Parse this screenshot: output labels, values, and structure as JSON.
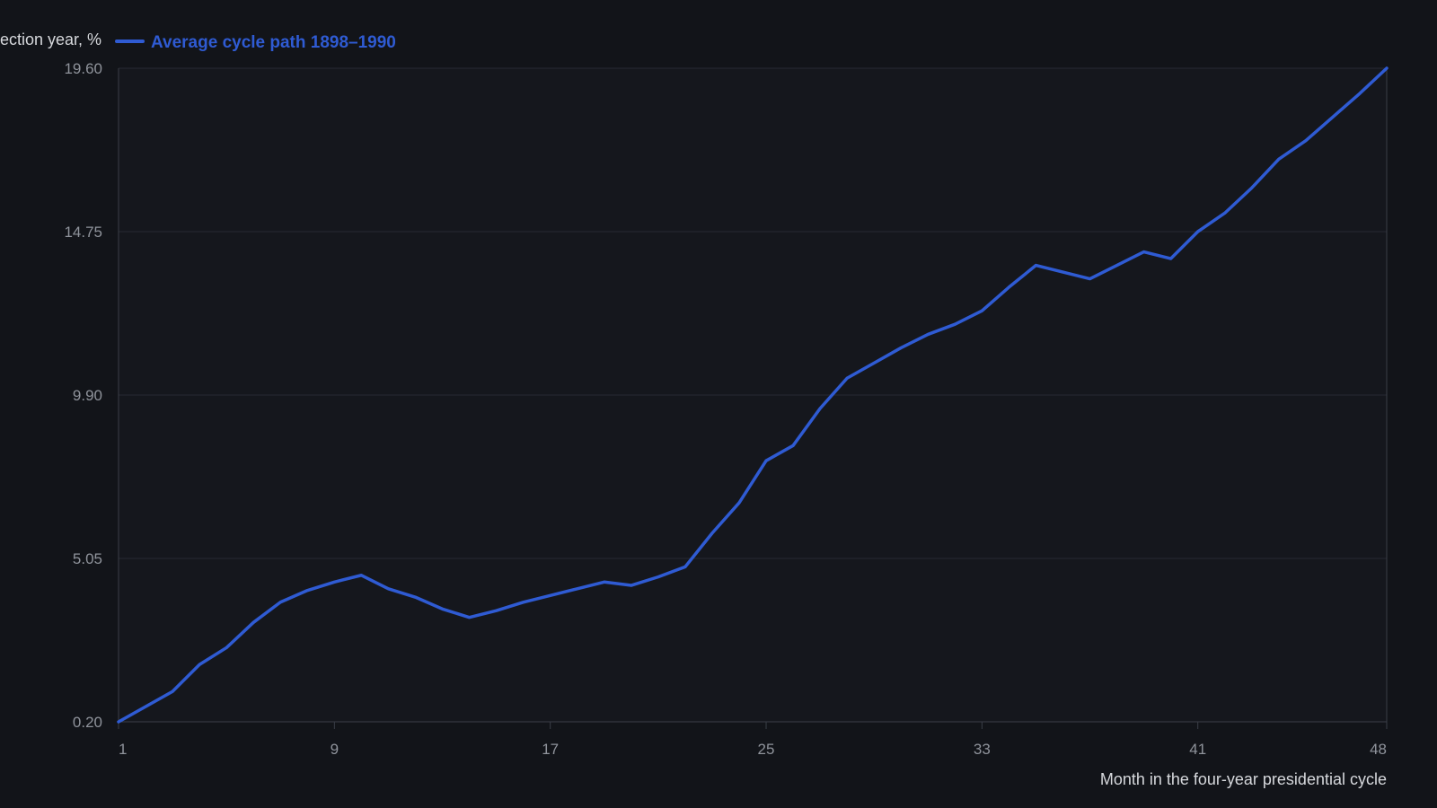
{
  "chart_data": {
    "type": "line",
    "ylabel": "ection year, %",
    "xlabel": "Month in the four-year presidential cycle",
    "xlim": [
      1,
      48
    ],
    "ylim": [
      0.2,
      19.6
    ],
    "x_ticks": [
      1,
      9,
      17,
      25,
      33,
      41,
      48
    ],
    "y_ticks": [
      0.2,
      5.05,
      9.9,
      14.75,
      19.6
    ],
    "y_tick_labels": [
      "0.20",
      "5.05",
      "9.90",
      "14.75",
      "19.60"
    ],
    "grid": "horizontal",
    "legend_position": "top-left",
    "colors": {
      "background": "#121419",
      "plot_background": "#15171d",
      "series": "#2f5bd3",
      "grid": "#262932",
      "axis": "#3a3e47",
      "tick_text": "#8f939b",
      "title_text": "#d6d8dc"
    },
    "series": [
      {
        "name": "Average cycle path 1898–1990",
        "x": [
          1,
          2,
          3,
          4,
          5,
          6,
          7,
          8,
          9,
          10,
          11,
          12,
          13,
          14,
          15,
          16,
          17,
          18,
          19,
          20,
          21,
          22,
          23,
          24,
          25,
          26,
          27,
          28,
          29,
          30,
          31,
          32,
          33,
          34,
          35,
          36,
          37,
          38,
          39,
          40,
          41,
          42,
          43,
          44,
          45,
          46,
          47,
          48
        ],
        "y": [
          0.2,
          0.65,
          1.1,
          1.9,
          2.4,
          3.15,
          3.75,
          4.1,
          4.35,
          4.55,
          4.15,
          3.9,
          3.55,
          3.3,
          3.5,
          3.75,
          3.95,
          4.15,
          4.35,
          4.25,
          4.5,
          4.8,
          5.8,
          6.7,
          7.95,
          8.4,
          9.5,
          10.4,
          10.85,
          11.3,
          11.7,
          12.0,
          12.4,
          13.1,
          13.75,
          13.55,
          13.35,
          13.75,
          14.15,
          13.95,
          14.75,
          15.3,
          16.05,
          16.9,
          17.45,
          18.15,
          18.85,
          19.6
        ]
      }
    ]
  }
}
